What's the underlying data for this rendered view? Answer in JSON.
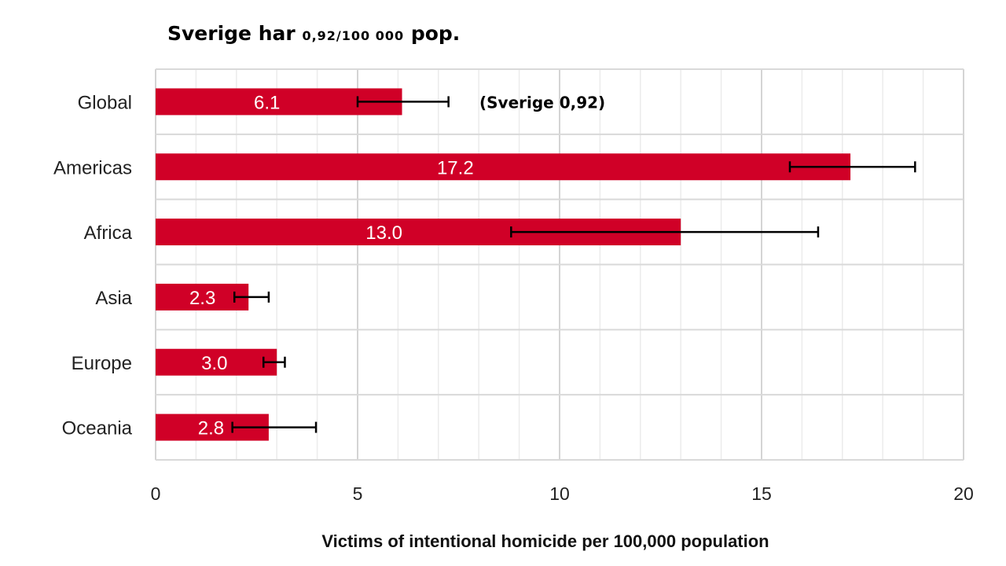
{
  "title": {
    "main": "Sverige har",
    "value": "0,92/100 000",
    "suffix": "pop."
  },
  "chart_data": {
    "type": "bar",
    "orientation": "horizontal",
    "categories": [
      "Global",
      "Americas",
      "Africa",
      "Asia",
      "Europe",
      "Oceania"
    ],
    "values": [
      6.1,
      17.2,
      13.0,
      2.3,
      3.0,
      2.8
    ],
    "value_labels": [
      "6.1",
      "17.2",
      "13.0",
      "2.3",
      "3.0",
      "2.8"
    ],
    "error_low": [
      5.0,
      15.7,
      8.8,
      1.95,
      2.67,
      1.9
    ],
    "error_high": [
      7.25,
      18.8,
      16.4,
      2.8,
      3.2,
      3.97
    ],
    "xlabel": "Victims of intentional homicide per 100,000 population",
    "ylabel": "",
    "xlim": [
      0,
      20
    ],
    "xticks": [
      0,
      5,
      10,
      15,
      20
    ],
    "minor_grid_step": 1,
    "grid": true,
    "bar_color": "#d00027",
    "annotation": {
      "text": "(Sverige 0,92)",
      "category": "Global"
    }
  }
}
